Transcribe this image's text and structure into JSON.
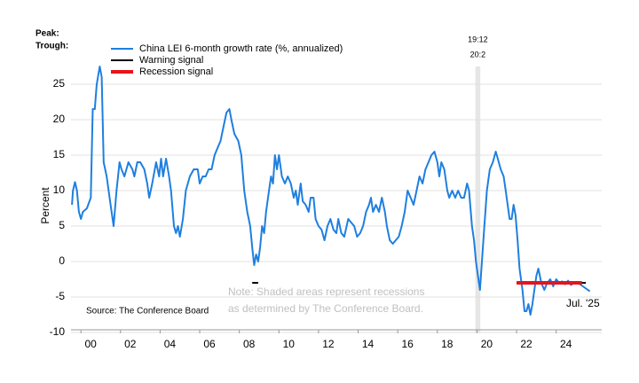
{
  "chart_data": {
    "type": "line",
    "y_label": "Percent",
    "peak_trough_labels": [
      "Peak:",
      "Trough:"
    ],
    "note": [
      "Note: Shaded areas represent recessions",
      "as determined by The Conference Board."
    ],
    "source": "Source: The Conference Board",
    "end_label": "Jul. '25",
    "xlim": [
      1999.5,
      2026.3
    ],
    "ylim": [
      -10,
      30
    ],
    "yticks": [
      -10,
      -5,
      0,
      5,
      10,
      15,
      20,
      25
    ],
    "xticks": [
      {
        "value": 2000,
        "label": "00"
      },
      {
        "value": 2002,
        "label": "02"
      },
      {
        "value": 2004,
        "label": "04"
      },
      {
        "value": 2006,
        "label": "06"
      },
      {
        "value": 2008,
        "label": "08"
      },
      {
        "value": 2010,
        "label": "10"
      },
      {
        "value": 2012,
        "label": "12"
      },
      {
        "value": 2014,
        "label": "14"
      },
      {
        "value": 2016,
        "label": "16"
      },
      {
        "value": 2018,
        "label": "18"
      },
      {
        "value": 2020,
        "label": "20"
      },
      {
        "value": 2022,
        "label": "22"
      },
      {
        "value": 2024,
        "label": "24"
      }
    ],
    "grid": true,
    "recessions": [
      {
        "start": 2019.92,
        "end": 2020.17,
        "peak": "19:12",
        "trough": "20:2"
      }
    ],
    "x": [
      1999.55,
      1999.6,
      1999.7,
      1999.8,
      1999.9,
      2000.0,
      2000.1,
      2000.3,
      2000.5,
      2000.6,
      2000.7,
      2000.8,
      2000.95,
      2001.05,
      2001.15,
      2001.3,
      2001.5,
      2001.65,
      2001.8,
      2001.95,
      2002.05,
      2002.2,
      2002.4,
      2002.6,
      2002.7,
      2002.85,
      2003.0,
      2003.2,
      2003.35,
      2003.45,
      2003.6,
      2003.8,
      2003.95,
      2004.05,
      2004.15,
      2004.3,
      2004.45,
      2004.55,
      2004.7,
      2004.8,
      2004.9,
      2005.0,
      2005.15,
      2005.3,
      2005.5,
      2005.7,
      2005.9,
      2006.0,
      2006.15,
      2006.3,
      2006.45,
      2006.6,
      2006.75,
      2006.9,
      2007.05,
      2007.2,
      2007.35,
      2007.5,
      2007.6,
      2007.75,
      2007.95,
      2008.1,
      2008.25,
      2008.4,
      2008.55,
      2008.65,
      2008.75,
      2008.85,
      2008.95,
      2009.05,
      2009.15,
      2009.25,
      2009.35,
      2009.5,
      2009.6,
      2009.7,
      2009.8,
      2009.9,
      2010.0,
      2010.15,
      2010.3,
      2010.45,
      2010.6,
      2010.75,
      2010.85,
      2010.95,
      2011.1,
      2011.2,
      2011.35,
      2011.5,
      2011.6,
      2011.75,
      2011.85,
      2012.0,
      2012.15,
      2012.3,
      2012.45,
      2012.6,
      2012.75,
      2012.9,
      2013.0,
      2013.15,
      2013.3,
      2013.5,
      2013.65,
      2013.8,
      2013.95,
      2014.1,
      2014.25,
      2014.4,
      2014.55,
      2014.65,
      2014.75,
      2014.9,
      2015.05,
      2015.2,
      2015.35,
      2015.45,
      2015.6,
      2015.75,
      2015.9,
      2016.05,
      2016.2,
      2016.35,
      2016.5,
      2016.65,
      2016.8,
      2016.95,
      2017.1,
      2017.25,
      2017.4,
      2017.55,
      2017.7,
      2017.85,
      2018.0,
      2018.1,
      2018.2,
      2018.35,
      2018.5,
      2018.6,
      2018.75,
      2018.9,
      2019.05,
      2019.2,
      2019.35,
      2019.5,
      2019.6,
      2019.75,
      2019.85,
      2019.95,
      2020.05,
      2020.15,
      2020.25,
      2020.35,
      2020.5,
      2020.65,
      2020.8,
      2020.95,
      2021.05,
      2021.2,
      2021.35,
      2021.45,
      2021.55,
      2021.65,
      2021.75,
      2021.85,
      2021.95,
      2022.05,
      2022.15,
      2022.3,
      2022.4,
      2022.5,
      2022.6,
      2022.7,
      2022.8,
      2022.9,
      2023.0,
      2023.1,
      2023.25,
      2023.4,
      2023.55,
      2023.7,
      2023.85,
      2024.0,
      2024.15,
      2024.3,
      2024.45,
      2024.6,
      2024.75,
      2024.9,
      2025.05,
      2025.2,
      2025.35,
      2025.7
    ],
    "series": [
      {
        "name": "China LEI 6-month growth rate (%, annualized)",
        "color": "#1f7fe0",
        "values": [
          8,
          10,
          11.2,
          10,
          7,
          6,
          7,
          7.5,
          9,
          21.5,
          21.5,
          25,
          27.5,
          26,
          14,
          12,
          8,
          5,
          10,
          14,
          13,
          12,
          14,
          13,
          12,
          14,
          14,
          13,
          11,
          9,
          11,
          14,
          12,
          14.5,
          12,
          14.5,
          12,
          10,
          5,
          4,
          5,
          3.5,
          6,
          10,
          12,
          13,
          13,
          11,
          12,
          12,
          13,
          13,
          15,
          16,
          17,
          19,
          21,
          21.5,
          20,
          18,
          17,
          15,
          10,
          7,
          5,
          2,
          -0.5,
          1,
          0,
          2,
          5,
          4,
          7,
          10,
          12,
          11,
          15,
          13,
          15,
          12,
          11,
          12,
          11,
          9,
          10,
          8,
          11,
          8.5,
          8,
          7,
          9,
          9,
          6,
          5,
          4.5,
          3,
          5,
          6,
          4.5,
          4,
          6,
          4,
          3.5,
          6,
          5.5,
          5,
          3.5,
          4,
          5,
          7,
          8,
          9,
          7,
          8,
          7,
          9,
          7,
          5,
          3,
          2.5,
          3,
          3.5,
          5,
          7,
          10,
          9,
          8,
          10,
          12,
          11,
          13,
          14,
          15,
          15.5,
          14,
          12,
          14,
          13,
          10,
          9,
          10,
          9,
          10,
          9,
          9,
          11,
          10,
          5,
          3,
          0,
          -2,
          -4,
          0,
          4,
          10,
          13,
          14,
          15.5,
          14.5,
          13,
          12,
          10,
          8,
          6,
          6,
          8,
          6.5,
          3,
          -1,
          -4,
          -7,
          -7,
          -6,
          -7.5,
          -6,
          -4,
          -2,
          -1,
          -3,
          -4,
          -3,
          -2.5,
          -3.5,
          -2.5,
          -3,
          -2.8,
          -3.2,
          -2.7,
          -3.3,
          -3,
          -3,
          -3.2,
          -3.5,
          -4.2
        ]
      },
      {
        "name": "Warning signal",
        "color": "#000000",
        "x": [
          2008.65,
          2008.95,
          2009.0,
          2022.0,
          2025.5
        ],
        "values": [
          -3,
          -3,
          null,
          -3,
          -3
        ]
      },
      {
        "name": "Recession signal",
        "color": "#e8141b",
        "x": [
          2022.0,
          2025.3
        ],
        "values": [
          -3,
          -3
        ]
      }
    ]
  }
}
